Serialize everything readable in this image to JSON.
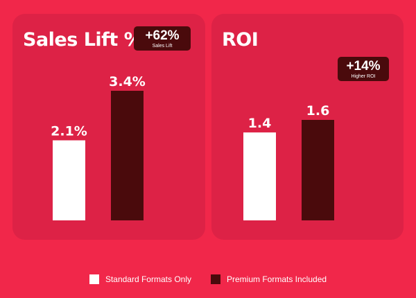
{
  "colors": {
    "background": "#f1274a",
    "panel": "#dd2246",
    "standard": "#ffffff",
    "premium": "#4a0a0c"
  },
  "legend": [
    {
      "label": "Standard Formats Only",
      "color": "#ffffff"
    },
    {
      "label": "Premium Formats Included",
      "color": "#4a0a0c"
    }
  ],
  "chart_data": [
    {
      "type": "bar",
      "title": "Sales Lift %",
      "categories": [
        "Standard Formats Only",
        "Premium Formats Included"
      ],
      "values": [
        2.1,
        3.4
      ],
      "labels": [
        "2.1%",
        "3.4%"
      ],
      "ylim": [
        0,
        3.4
      ],
      "badge": {
        "value": "+62%",
        "caption": "Sales Lift"
      }
    },
    {
      "type": "bar",
      "title": "ROI",
      "categories": [
        "Standard Formats Only",
        "Premium Formats Included"
      ],
      "values": [
        1.4,
        1.6
      ],
      "labels": [
        "1.4",
        "1.6"
      ],
      "ylim": [
        0,
        1.6
      ],
      "badge": {
        "value": "+14%",
        "caption": "Higher ROI"
      }
    }
  ]
}
